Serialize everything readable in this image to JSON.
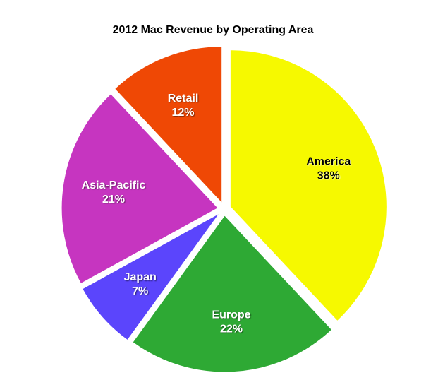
{
  "chart_data": {
    "type": "pie",
    "title": "2012 Mac Revenue by Operating Area",
    "start_angle_deg": 0,
    "direction": "clockwise",
    "exploded": true,
    "slices": [
      {
        "label": "America",
        "percent_label": "38%",
        "value": 38,
        "color": "#f6f900",
        "text_color": "#000000"
      },
      {
        "label": "Europe",
        "percent_label": "22%",
        "value": 22,
        "color": "#2ea934",
        "text_color": "#ffffff"
      },
      {
        "label": "Japan",
        "percent_label": "7%",
        "value": 7,
        "color": "#5b45fc",
        "text_color": "#ffffff"
      },
      {
        "label": "Asia-Pacific",
        "percent_label": "21%",
        "value": 21,
        "color": "#c635c0",
        "text_color": "#ffffff"
      },
      {
        "label": "Retail",
        "percent_label": "12%",
        "value": 12,
        "color": "#ef4805",
        "text_color": "#ffffff"
      }
    ]
  }
}
